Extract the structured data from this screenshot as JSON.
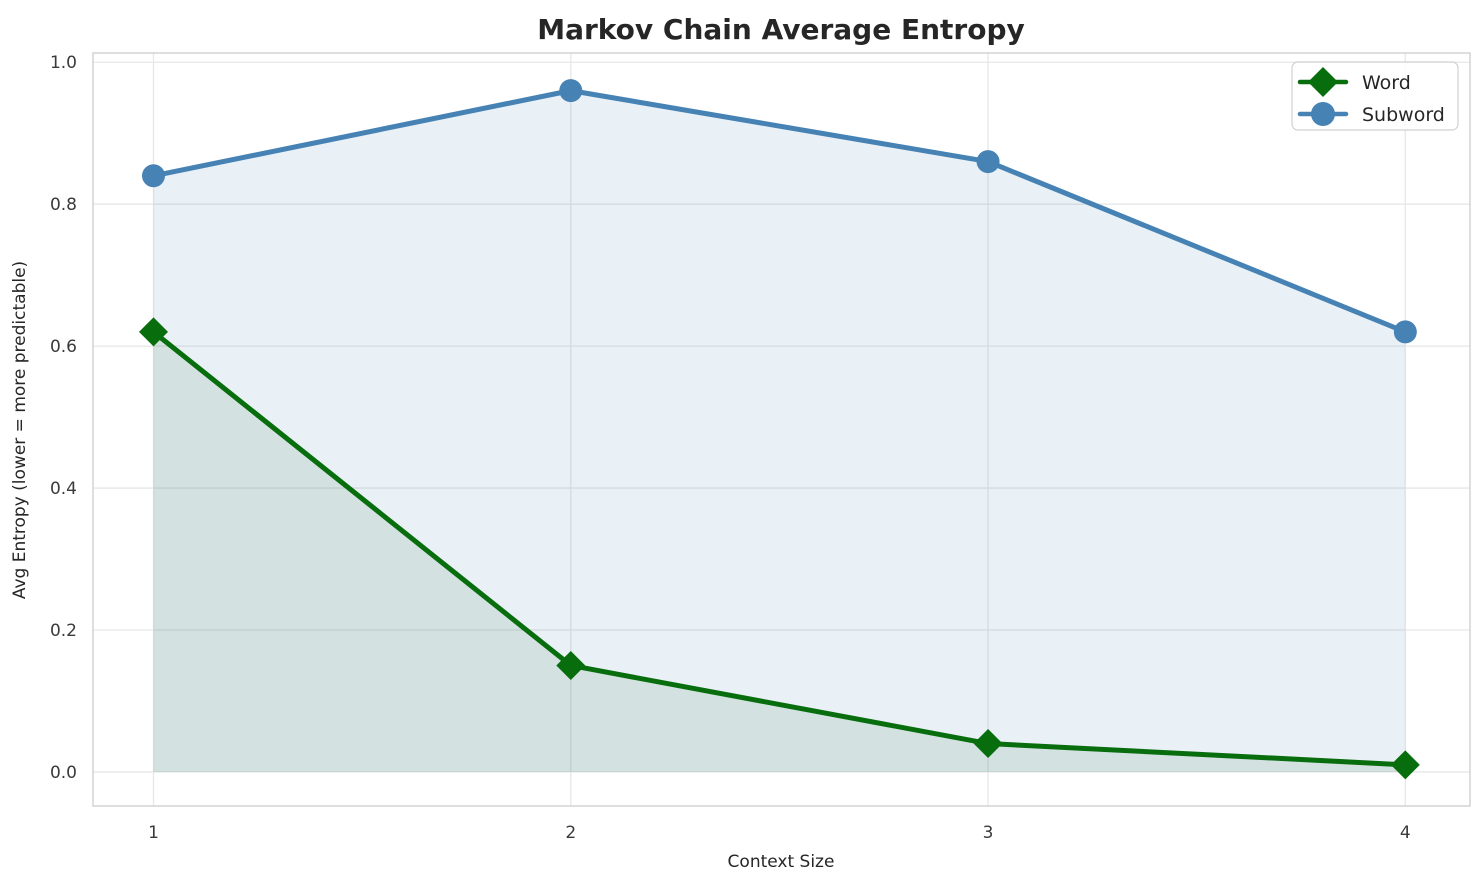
{
  "figure": {
    "background": "#ffffff",
    "grid_color": "#e7e7e7",
    "spine_color": "#cfcfcf",
    "text_color": "#262626",
    "tick_color": "#3a3a3a"
  },
  "chart_data": {
    "type": "line",
    "title": "Markov Chain Average Entropy",
    "xlabel": "Context Size",
    "ylabel": "Avg Entropy (lower = more predictable)",
    "x": [
      1,
      2,
      3,
      4
    ],
    "series": [
      {
        "name": "Word",
        "values": [
          0.62,
          0.15,
          0.04,
          0.01
        ],
        "color": "#076d0d",
        "marker": "diamond",
        "fill_alpha": 0.1,
        "line_width": 5
      },
      {
        "name": "Subword",
        "values": [
          0.84,
          0.96,
          0.86,
          0.62
        ],
        "color": "#4682b4",
        "marker": "circle",
        "fill_alpha": 0.12,
        "line_width": 5
      }
    ],
    "fill_to": 0,
    "xlim": [
      0.855,
      4.155
    ],
    "ylim": [
      -0.048,
      1.013
    ],
    "xticks": [
      1,
      2,
      3,
      4
    ],
    "xtick_labels": [
      "1",
      "2",
      "3",
      "4"
    ],
    "yticks": [
      0.0,
      0.2,
      0.4,
      0.6,
      0.8,
      1.0
    ],
    "ytick_labels": [
      "0.0",
      "0.2",
      "0.4",
      "0.6",
      "0.8",
      "1.0"
    ],
    "grid": true,
    "legend_position": "upper right",
    "legend_entries": [
      "Word",
      "Subword"
    ]
  }
}
